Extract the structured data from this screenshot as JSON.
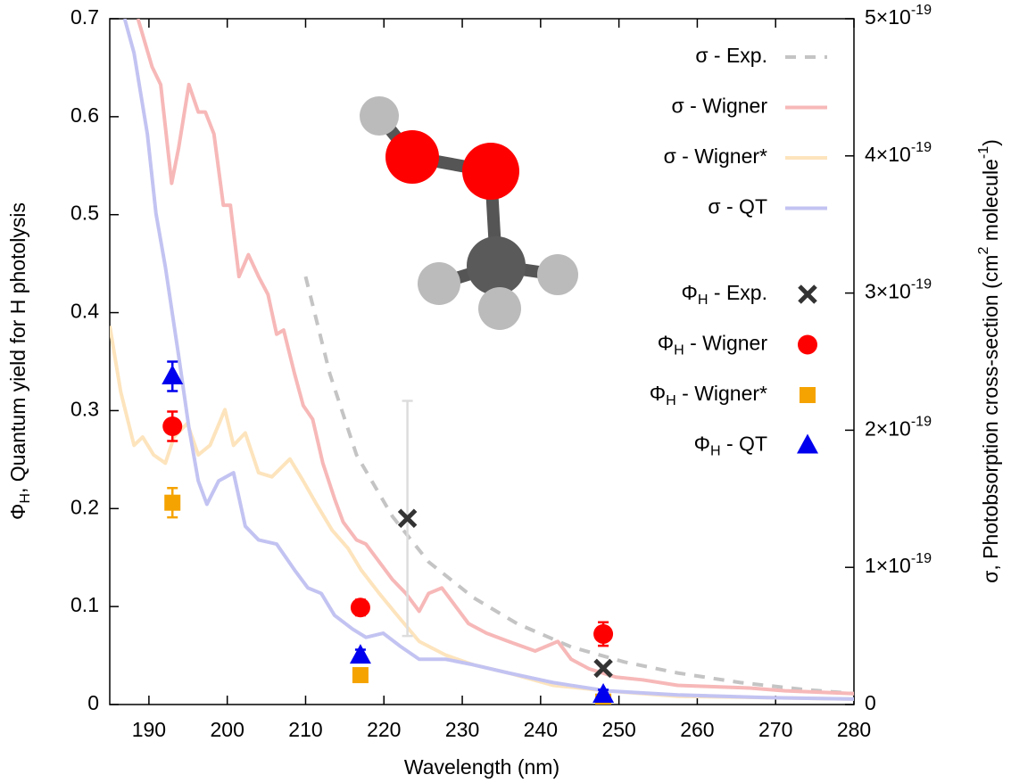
{
  "chart_data": {
    "type": "line",
    "xlabel": "Wavelength (nm)",
    "ylabel": "ΦH, Quantum yield for H photolysis",
    "y2label": "σ, Photobsorption cross-section (cm2 molecule-1)",
    "xlim": [
      185,
      280
    ],
    "xticks": [
      190,
      200,
      210,
      220,
      230,
      240,
      250,
      260,
      270,
      280
    ],
    "ylim": [
      0,
      0.7
    ],
    "yticks": [
      0,
      0.1,
      0.2,
      0.3,
      0.4,
      0.5,
      0.6,
      0.7
    ],
    "y2lim": [
      0,
      5e-19
    ],
    "y2ticks": [
      0,
      {
        "value": 1e-19,
        "label": "1×10-19"
      },
      {
        "value": 2e-19,
        "label": "2×10-19"
      },
      {
        "value": 3e-19,
        "label": "3×10-19"
      },
      {
        "value": 4e-19,
        "label": "4×10-19"
      },
      {
        "value": 5e-19,
        "label": "5×10-19"
      }
    ],
    "legend": "upper right",
    "series": [
      {
        "name": "σ - Exp.",
        "color": "#c4c4c4",
        "axis": "y2",
        "style": "dashed",
        "x": [
          210,
          213.1,
          216.5,
          221.1,
          225.7,
          231.4,
          237,
          243.9,
          250.7,
          257.5,
          265.5,
          273.5,
          280
        ],
        "values": [
          3.12e-19,
          2.41e-19,
          1.82e-19,
          1.37e-19,
          1.04e-19,
          7.8e-20,
          5.9e-20,
          4.2e-20,
          3.1e-20,
          2.3e-20,
          1.6e-20,
          1.1e-20,
          8e-21
        ]
      },
      {
        "name": "σ - Wigner",
        "color": "#f7b8b8",
        "axis": "y2",
        "style": "solid",
        "x": [
          188.6,
          190.4,
          191.5,
          192.9,
          193.8,
          195.1,
          196.3,
          197.2,
          198.3,
          199.5,
          200.4,
          201.5,
          202.7,
          204,
          205.2,
          206.3,
          207.2,
          208.6,
          209.7,
          210.9,
          212.2,
          213.7,
          214.8,
          216.5,
          217.7,
          219.4,
          221.1,
          222.8,
          224.5,
          225.7,
          227.4,
          229.1,
          230.8,
          233.1,
          235.9,
          239.3,
          242.2,
          243.9,
          246.2,
          249.6,
          253,
          257.5,
          262.1,
          266.7,
          271.2,
          280
        ],
        "values": [
          5e-19,
          4.65e-19,
          4.52e-19,
          3.8e-19,
          4.06e-19,
          4.52e-19,
          4.32e-19,
          4.32e-19,
          4.16e-19,
          3.64e-19,
          3.64e-19,
          3.12e-19,
          3.28e-19,
          3.12e-19,
          2.99e-19,
          2.7e-19,
          2.73e-19,
          2.41e-19,
          2.18e-19,
          2.08e-19,
          1.76e-19,
          1.5e-19,
          1.33e-19,
          1.2e-19,
          1.17e-19,
          1.04e-19,
          9.1e-20,
          8.1e-20,
          6.8e-20,
          8.1e-20,
          8.5e-20,
          7.2e-20,
          5.9e-20,
          5.2e-20,
          4.6e-20,
          3.9e-20,
          4.6e-20,
          3.3e-20,
          2.6e-20,
          2e-20,
          1.8e-20,
          1.4e-20,
          1.3e-20,
          1.2e-20,
          1e-20,
          8e-21
        ]
      },
      {
        "name": "σ - Wigner*",
        "color": "#fde4bd",
        "axis": "y2",
        "style": "solid",
        "x": [
          185,
          186.4,
          188.1,
          189.2,
          190.6,
          192.1,
          193.2,
          194.9,
          196.3,
          197.8,
          199.7,
          200.8,
          202.3,
          204,
          205.7,
          208,
          209.7,
          211.4,
          213.4,
          215.4,
          217.1,
          219.4,
          221.7,
          224.5,
          227.9,
          231.4,
          235.9,
          241.6,
          248.4,
          257.5,
          268.9,
          280
        ],
        "values": [
          2.76e-19,
          2.28e-19,
          1.89e-19,
          1.95e-19,
          1.82e-19,
          1.76e-19,
          1.95e-19,
          2.05e-19,
          1.82e-19,
          1.89e-19,
          2.15e-19,
          1.89e-19,
          1.98e-19,
          1.69e-19,
          1.66e-19,
          1.79e-19,
          1.63e-19,
          1.46e-19,
          1.27e-19,
          1.14e-19,
          9.8e-20,
          8.1e-20,
          6.5e-20,
          4.6e-20,
          3.6e-20,
          2.9e-20,
          2.3e-20,
          1.4e-20,
          1e-20,
          6e-21,
          5e-21,
          4e-21
        ]
      },
      {
        "name": "σ - QT",
        "color": "#c3c3f2",
        "axis": "y2",
        "style": "solid",
        "x": [
          186.9,
          188.1,
          189.8,
          190.9,
          192.1,
          193.8,
          195.1,
          196.3,
          197.4,
          198.9,
          200.8,
          202.3,
          204,
          206.3,
          208.6,
          210.3,
          212,
          213.7,
          216,
          217.7,
          219.9,
          222.2,
          224.5,
          227.9,
          231.4,
          235.9,
          241.6,
          248.4,
          257.5,
          268.9,
          280
        ],
        "values": [
          5e-19,
          4.75e-19,
          4.16e-19,
          3.58e-19,
          3.19e-19,
          2.54e-19,
          2.02e-19,
          1.63e-19,
          1.46e-19,
          1.63e-19,
          1.69e-19,
          1.3e-19,
          1.2e-19,
          1.17e-19,
          9.8e-20,
          8.5e-20,
          8.1e-20,
          6.5e-20,
          5.5e-20,
          4.9e-20,
          5.2e-20,
          4.2e-20,
          3.3e-20,
          3.3e-20,
          2.9e-20,
          2.3e-20,
          1.6e-20,
          1e-20,
          7e-21,
          5e-21,
          4e-21
        ]
      },
      {
        "name": "ΦH - Exp.",
        "color": "#333333",
        "marker": "x",
        "x": [
          223,
          248
        ],
        "values": [
          0.19,
          0.037
        ],
        "errors": [
          0.12,
          null
        ],
        "error_color": "#dddddd"
      },
      {
        "name": "ΦH - Wigner",
        "color": "#ff0000",
        "marker": "circle",
        "x": [
          193,
          217,
          248
        ],
        "values": [
          0.284,
          0.099,
          0.072
        ],
        "errors": [
          0.015,
          0.008,
          0.012
        ]
      },
      {
        "name": "ΦH - Wigner*",
        "color": "#f5a300",
        "marker": "square",
        "x": [
          193,
          217,
          248
        ],
        "values": [
          0.206,
          0.03,
          0.003
        ],
        "errors": [
          0.015,
          0.005,
          0.003
        ]
      },
      {
        "name": "ΦH - QT",
        "color": "#0000ee",
        "marker": "triangle",
        "x": [
          193,
          217,
          248
        ],
        "values": [
          0.335,
          0.05,
          0.01
        ],
        "errors": [
          0.015,
          0.006,
          0.005
        ]
      }
    ]
  }
}
